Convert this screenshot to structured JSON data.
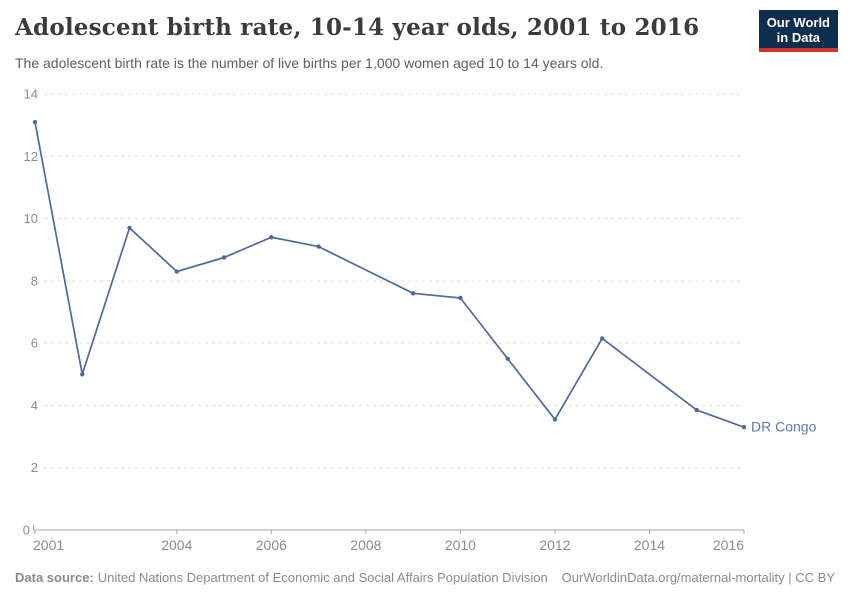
{
  "logo": {
    "line1": "Our World",
    "line2": "in Data"
  },
  "colors": {
    "line": "#4c6a9c",
    "entity_label": "#5b7aa9",
    "grid": "#e0e0e0",
    "axis": "#a6a6a6",
    "tick_label": "#8c8c8c",
    "logo_background": "#0d2e4e",
    "logo_stripe": "#d2352b"
  },
  "chart_data": {
    "type": "line",
    "title": "Adolescent birth rate, 10-14 year olds, 2001 to 2016",
    "subtitle": "The adolescent birth rate is the number of live births per 1,000 women aged 10 to 14 years old.",
    "xlabel": "",
    "ylabel": "",
    "x": [
      2001,
      2002,
      2003,
      2004,
      2005,
      2006,
      2007,
      2009,
      2010,
      2011,
      2012,
      2013,
      2015,
      2016
    ],
    "series": [
      {
        "name": "DR Congo",
        "color": "#4c6a9c",
        "label_color": "#5b7aa9",
        "values": [
          13.1,
          5.0,
          9.7,
          8.3,
          8.75,
          9.4,
          9.1,
          7.6,
          7.45,
          5.5,
          3.55,
          6.15,
          3.85,
          3.3
        ]
      }
    ],
    "xlim": [
      2001,
      2016
    ],
    "ylim": [
      0,
      14
    ],
    "xticks": [
      2001,
      2004,
      2006,
      2008,
      2010,
      2012,
      2014,
      2016
    ],
    "yticks": [
      0,
      2,
      4,
      6,
      8,
      10,
      12,
      14
    ],
    "grid": "horizontal-dashed",
    "legend": "entity-label-right-of-line"
  },
  "footer": {
    "datasource_label": "Data source:",
    "datasource_text": "United Nations Department of Economic and Social Affairs Population Division",
    "link_text": "OurWorldinData.org/maternal-mortality | CC BY"
  }
}
